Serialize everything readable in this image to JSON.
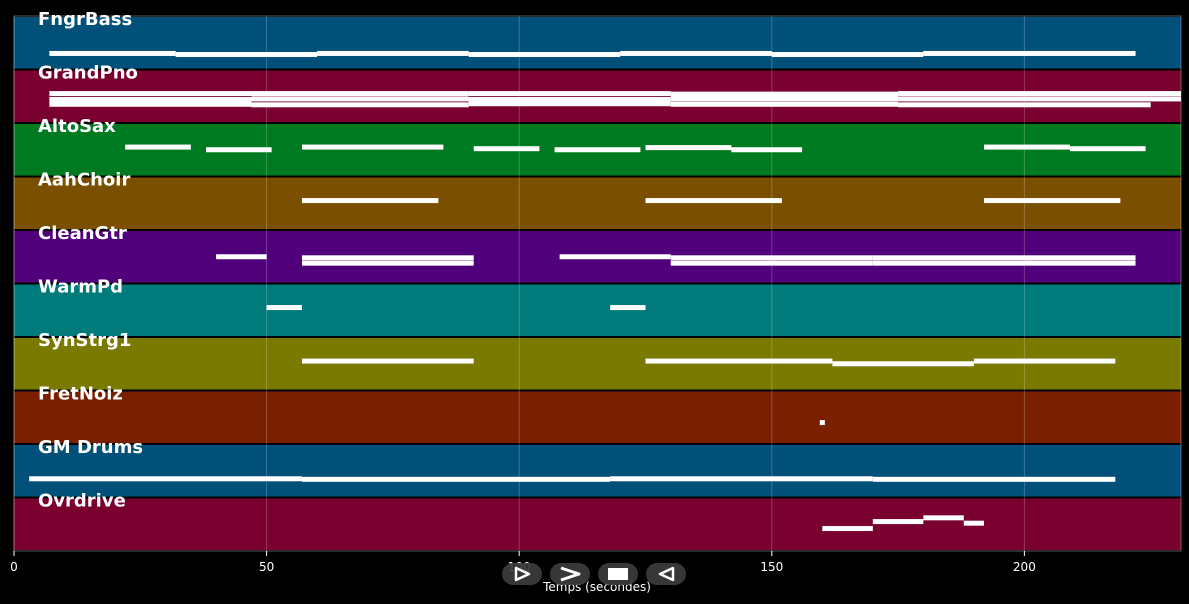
{
  "chart_data": {
    "type": "piano-roll",
    "xlabel": "Temps (secondes)",
    "xlim": [
      0,
      231
    ],
    "xticks": [
      0,
      50,
      100,
      150,
      200
    ],
    "grid": true,
    "tracks": [
      {
        "name": "FngrBass",
        "color": "#00507a",
        "segments": [
          [
            7,
            32,
            0.7
          ],
          [
            32,
            60,
            0.72
          ],
          [
            60,
            90,
            0.7
          ],
          [
            90,
            120,
            0.72
          ],
          [
            120,
            150,
            0.7
          ],
          [
            150,
            180,
            0.72
          ],
          [
            180,
            222,
            0.7
          ]
        ]
      },
      {
        "name": "GrandPno",
        "color": "#7a0030",
        "segments": [
          [
            7,
            47,
            0.45
          ],
          [
            7,
            47,
            0.56
          ],
          [
            7,
            47,
            0.65
          ],
          [
            47,
            90,
            0.45
          ],
          [
            47,
            90,
            0.55
          ],
          [
            47,
            90,
            0.66
          ],
          [
            90,
            130,
            0.45
          ],
          [
            90,
            130,
            0.56
          ],
          [
            90,
            130,
            0.64
          ],
          [
            130,
            175,
            0.46
          ],
          [
            130,
            175,
            0.55
          ],
          [
            130,
            175,
            0.65
          ],
          [
            175,
            231,
            0.45
          ],
          [
            175,
            231,
            0.55
          ],
          [
            175,
            225,
            0.66
          ]
        ]
      },
      {
        "name": "AltoSax",
        "color": "#007a20",
        "segments": [
          [
            22,
            35,
            0.45
          ],
          [
            38,
            51,
            0.5
          ],
          [
            57,
            85,
            0.45
          ],
          [
            91,
            104,
            0.48
          ],
          [
            107,
            124,
            0.5
          ],
          [
            125,
            142,
            0.46
          ],
          [
            142,
            156,
            0.5
          ],
          [
            192,
            209,
            0.45
          ],
          [
            209,
            224,
            0.48
          ]
        ]
      },
      {
        "name": "AahChoir",
        "color": "#7a5000",
        "segments": [
          [
            57,
            84,
            0.45
          ],
          [
            125,
            152,
            0.45
          ],
          [
            192,
            219,
            0.45
          ]
        ]
      },
      {
        "name": "CleanGtr",
        "color": "#50007a",
        "segments": [
          [
            40,
            50,
            0.5
          ],
          [
            57,
            91,
            0.52
          ],
          [
            57,
            91,
            0.62
          ],
          [
            108,
            130,
            0.5
          ],
          [
            130,
            170,
            0.52
          ],
          [
            130,
            170,
            0.62
          ],
          [
            170,
            222,
            0.52
          ],
          [
            170,
            222,
            0.62
          ]
        ]
      },
      {
        "name": "WarmPd",
        "color": "#007a7a",
        "segments": [
          [
            50,
            57,
            0.45
          ],
          [
            118,
            125,
            0.45
          ]
        ]
      },
      {
        "name": "SynStrg1",
        "color": "#7a7a00",
        "segments": [
          [
            57,
            91,
            0.45
          ],
          [
            125,
            162,
            0.45
          ],
          [
            162,
            190,
            0.5
          ],
          [
            190,
            218,
            0.45
          ]
        ]
      },
      {
        "name": "FretNoiz",
        "color": "#7a2000",
        "segments": [
          [
            159.5,
            160.5,
            0.6
          ]
        ]
      },
      {
        "name": "GM Drums",
        "color": "#00507a",
        "segments": [
          [
            3,
            57,
            0.65
          ],
          [
            57,
            118,
            0.66
          ],
          [
            118,
            170,
            0.65
          ],
          [
            170,
            218,
            0.66
          ]
        ]
      },
      {
        "name": "Ovrdrive",
        "color": "#7a0030",
        "segments": [
          [
            160,
            170,
            0.58
          ],
          [
            170,
            180,
            0.45
          ],
          [
            180,
            188,
            0.38
          ],
          [
            188,
            192,
            0.48
          ]
        ]
      }
    ]
  },
  "controls": [
    {
      "name": "play-button",
      "icon": "play-icon"
    },
    {
      "name": "forward-button",
      "icon": "chevron-right-icon"
    },
    {
      "name": "stop-button",
      "icon": "stop-icon"
    },
    {
      "name": "rewind-button",
      "icon": "rewind-icon"
    }
  ]
}
